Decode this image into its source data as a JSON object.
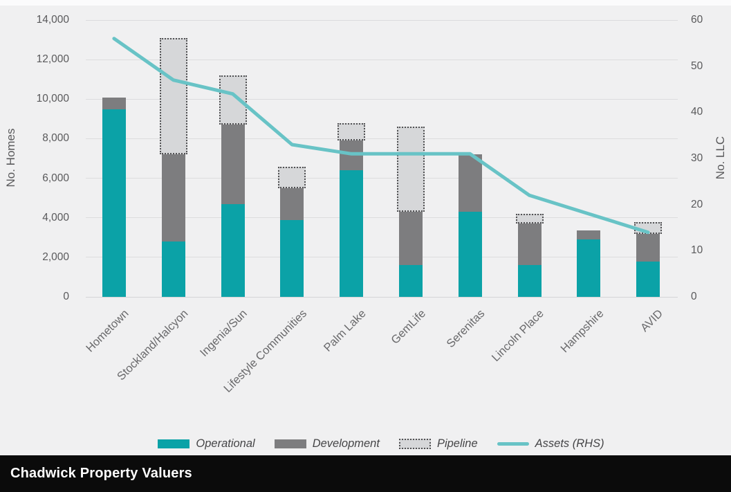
{
  "chart_data": {
    "type": "bar",
    "subtype": "stacked-bars-with-line-overlay",
    "title": "",
    "grid": true,
    "legend_position": "bottom",
    "categories": [
      "Hometown",
      "Stockland/Halcyon",
      "Ingenia/Sun",
      "Lifestyle Communities",
      "Palm Lake",
      "GemLife",
      "Serenitas",
      "Lincoln Place",
      "Hampshire",
      "AVID"
    ],
    "series": [
      {
        "name": "Operational",
        "key": "operational",
        "type": "bar",
        "stack": "homes",
        "axis": "left",
        "color": "#0ba2a7",
        "values": [
          9500,
          2800,
          4700,
          3900,
          6400,
          1600,
          4300,
          1600,
          2900,
          1800
        ]
      },
      {
        "name": "Development",
        "key": "development",
        "type": "bar",
        "stack": "homes",
        "axis": "left",
        "color": "#7d7d7f",
        "values": [
          600,
          4400,
          4000,
          1600,
          1500,
          2700,
          2900,
          2100,
          450,
          1400
        ]
      },
      {
        "name": "Pipeline",
        "key": "pipeline",
        "type": "bar",
        "stack": "homes",
        "axis": "left",
        "color": "#d6d7d9",
        "border_style": "dotted",
        "border_color": "#505052",
        "values": [
          0,
          5900,
          2500,
          1100,
          900,
          4300,
          0,
          500,
          0,
          600
        ]
      },
      {
        "name": "Assets (RHS)",
        "key": "assets",
        "type": "line",
        "axis": "right",
        "color": "#68c3c6",
        "values": [
          56,
          47,
          44,
          33,
          31,
          31,
          31,
          22,
          18,
          14
        ]
      }
    ],
    "left_axis": {
      "title": "No. Homes",
      "min": 0,
      "max": 14000,
      "ticks": [
        0,
        2000,
        4000,
        6000,
        8000,
        10000,
        12000,
        14000
      ],
      "tick_labels": [
        "0",
        "2,000",
        "4,000",
        "6,000",
        "8,000",
        "10,000",
        "12,000",
        "14,000"
      ]
    },
    "right_axis": {
      "title": "No. LLC",
      "min": 0,
      "max": 60,
      "ticks": [
        0,
        10,
        20,
        30,
        40,
        50,
        60
      ],
      "tick_labels": [
        "0",
        "10",
        "20",
        "30",
        "40",
        "50",
        "60"
      ]
    },
    "legend": [
      "Operational",
      "Development",
      "Pipeline",
      "Assets (RHS)"
    ]
  },
  "colors": {
    "background": "#f0f0f1",
    "gridline": "#dcdcde",
    "axis_text": "#59595b",
    "category_text": "#69696b",
    "operational": "#0ba2a7",
    "development": "#7d7d7f",
    "pipeline_fill": "#d6d7d9",
    "pipeline_dots": "#505052",
    "assets_line": "#68c3c6",
    "footer_background": "#0b0b0b",
    "footer_text": "#ffffff"
  },
  "footer": {
    "source_label": "Chadwick Property Valuers"
  }
}
